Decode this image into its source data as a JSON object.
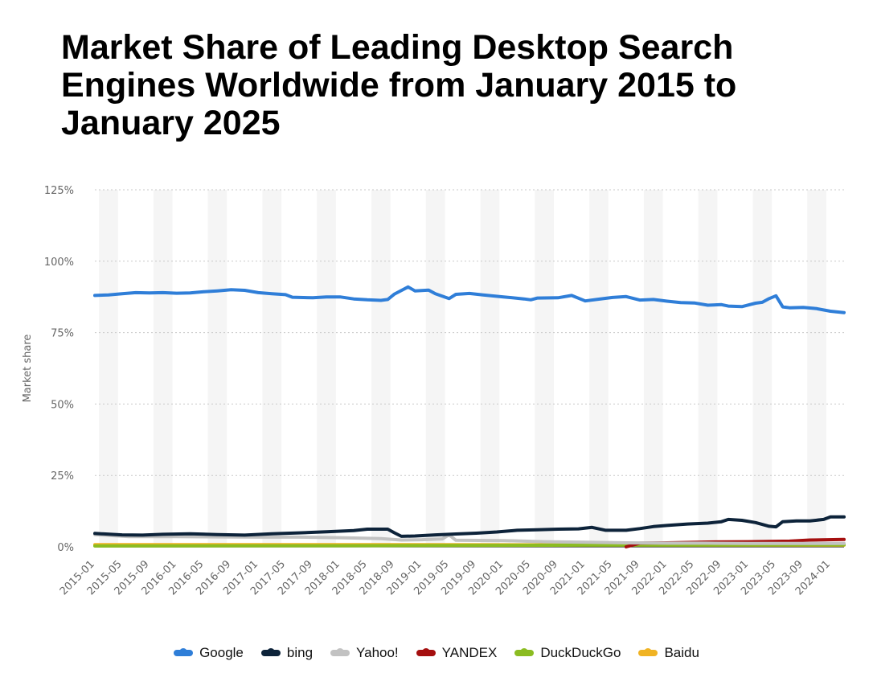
{
  "title": "Market Share of Leading Desktop Search Engines Worldwide from January 2015 to January 2025",
  "chart_data": {
    "type": "line",
    "title": "Market Share of Leading Desktop Search Engines Worldwide from January 2015 to January 2025",
    "xlabel": "",
    "ylabel": "Market share",
    "ylim": [
      0,
      125
    ],
    "yticks": [
      "0%",
      "25%",
      "50%",
      "75%",
      "100%",
      "125%"
    ],
    "x_start": "2015-01",
    "x_end": "2024-03",
    "xticks": [
      "2015-01",
      "2015-05",
      "2015-09",
      "2016-01",
      "2016-05",
      "2016-09",
      "2017-01",
      "2017-05",
      "2017-09",
      "2018-01",
      "2018-05",
      "2018-09",
      "2019-01",
      "2019-05",
      "2019-09",
      "2020-01",
      "2020-05",
      "2020-09",
      "2021-01",
      "2021-05",
      "2021-09",
      "2022-01",
      "2022-05",
      "2022-09",
      "2023-01",
      "2023-05",
      "2023-09",
      "2024-01"
    ],
    "grid": true,
    "legend_position": "bottom",
    "series": [
      {
        "name": "Google",
        "color": "#2f7ed8",
        "points": [
          [
            "2015-01",
            88.0
          ],
          [
            "2015-03",
            88.2
          ],
          [
            "2015-05",
            88.6
          ],
          [
            "2015-07",
            89.0
          ],
          [
            "2015-09",
            88.9
          ],
          [
            "2015-11",
            89.0
          ],
          [
            "2016-01",
            88.8
          ],
          [
            "2016-03",
            88.9
          ],
          [
            "2016-05",
            89.3
          ],
          [
            "2016-07",
            89.6
          ],
          [
            "2016-09",
            90.0
          ],
          [
            "2016-11",
            89.8
          ],
          [
            "2017-01",
            89.0
          ],
          [
            "2017-03",
            88.6
          ],
          [
            "2017-05",
            88.3
          ],
          [
            "2017-06",
            87.4
          ],
          [
            "2017-09",
            87.2
          ],
          [
            "2017-11",
            87.5
          ],
          [
            "2018-01",
            87.5
          ],
          [
            "2018-03",
            86.8
          ],
          [
            "2018-05",
            86.5
          ],
          [
            "2018-07",
            86.3
          ],
          [
            "2018-08",
            86.6
          ],
          [
            "2018-09",
            88.5
          ],
          [
            "2018-11",
            91.0
          ],
          [
            "2018-12",
            89.6
          ],
          [
            "2019-02",
            89.9
          ],
          [
            "2019-03",
            88.6
          ],
          [
            "2019-05",
            86.9
          ],
          [
            "2019-06",
            88.4
          ],
          [
            "2019-08",
            88.7
          ],
          [
            "2019-10",
            88.2
          ],
          [
            "2020-01",
            87.5
          ],
          [
            "2020-04",
            86.8
          ],
          [
            "2020-05",
            86.5
          ],
          [
            "2020-06",
            87.1
          ],
          [
            "2020-09",
            87.2
          ],
          [
            "2020-11",
            88.0
          ],
          [
            "2021-01",
            86.1
          ],
          [
            "2021-03",
            86.7
          ],
          [
            "2021-05",
            87.3
          ],
          [
            "2021-07",
            87.6
          ],
          [
            "2021-09",
            86.4
          ],
          [
            "2021-11",
            86.6
          ],
          [
            "2022-01",
            86.0
          ],
          [
            "2022-03",
            85.5
          ],
          [
            "2022-05",
            85.4
          ],
          [
            "2022-07",
            84.6
          ],
          [
            "2022-09",
            84.8
          ],
          [
            "2022-10",
            84.3
          ],
          [
            "2022-12",
            84.1
          ],
          [
            "2023-02",
            85.3
          ],
          [
            "2023-03",
            85.6
          ],
          [
            "2023-04",
            86.9
          ],
          [
            "2023-05",
            87.9
          ],
          [
            "2023-06",
            84.0
          ],
          [
            "2023-07",
            83.7
          ],
          [
            "2023-09",
            83.8
          ],
          [
            "2023-11",
            83.4
          ],
          [
            "2024-01",
            82.5
          ],
          [
            "2024-03",
            82.0
          ]
        ]
      },
      {
        "name": "bing",
        "color": "#0d233a",
        "points": [
          [
            "2015-01",
            4.7
          ],
          [
            "2015-05",
            4.2
          ],
          [
            "2015-08",
            4.1
          ],
          [
            "2015-11",
            4.4
          ],
          [
            "2016-03",
            4.6
          ],
          [
            "2016-07",
            4.3
          ],
          [
            "2016-11",
            4.1
          ],
          [
            "2017-03",
            4.6
          ],
          [
            "2017-07",
            4.9
          ],
          [
            "2017-11",
            5.3
          ],
          [
            "2018-03",
            5.7
          ],
          [
            "2018-05",
            6.2
          ],
          [
            "2018-08",
            6.2
          ],
          [
            "2018-09",
            4.9
          ],
          [
            "2018-10",
            3.7
          ],
          [
            "2018-12",
            3.8
          ],
          [
            "2019-03",
            4.2
          ],
          [
            "2019-06",
            4.5
          ],
          [
            "2019-09",
            4.8
          ],
          [
            "2019-12",
            5.2
          ],
          [
            "2020-03",
            5.8
          ],
          [
            "2020-06",
            6.0
          ],
          [
            "2020-09",
            6.2
          ],
          [
            "2020-12",
            6.3
          ],
          [
            "2021-02",
            6.8
          ],
          [
            "2021-04",
            5.8
          ],
          [
            "2021-07",
            5.8
          ],
          [
            "2021-09",
            6.4
          ],
          [
            "2021-11",
            7.1
          ],
          [
            "2022-01",
            7.5
          ],
          [
            "2022-04",
            8.0
          ],
          [
            "2022-07",
            8.3
          ],
          [
            "2022-09",
            8.8
          ],
          [
            "2022-10",
            9.6
          ],
          [
            "2022-12",
            9.3
          ],
          [
            "2023-02",
            8.5
          ],
          [
            "2023-04",
            7.2
          ],
          [
            "2023-05",
            7.0
          ],
          [
            "2023-06",
            8.8
          ],
          [
            "2023-08",
            9.1
          ],
          [
            "2023-10",
            9.1
          ],
          [
            "2023-12",
            9.6
          ],
          [
            "2024-01",
            10.5
          ],
          [
            "2024-03",
            10.5
          ]
        ]
      },
      {
        "name": "Yahoo!",
        "color": "#c2c2c2",
        "points": [
          [
            "2015-01",
            4.3
          ],
          [
            "2015-06",
            3.6
          ],
          [
            "2016-01",
            3.6
          ],
          [
            "2016-07",
            3.5
          ],
          [
            "2017-01",
            3.4
          ],
          [
            "2017-07",
            3.4
          ],
          [
            "2018-01",
            3.2
          ],
          [
            "2018-07",
            2.9
          ],
          [
            "2018-10",
            2.4
          ],
          [
            "2019-01",
            2.5
          ],
          [
            "2019-04",
            2.8
          ],
          [
            "2019-05",
            4.2
          ],
          [
            "2019-06",
            2.3
          ],
          [
            "2020-01",
            2.2
          ],
          [
            "2020-07",
            1.8
          ],
          [
            "2021-01",
            1.6
          ],
          [
            "2021-07",
            1.4
          ],
          [
            "2022-01",
            1.3
          ],
          [
            "2022-07",
            1.3
          ],
          [
            "2023-01",
            1.2
          ],
          [
            "2023-07",
            1.2
          ],
          [
            "2024-03",
            1.2
          ]
        ]
      },
      {
        "name": "YANDEX",
        "color": "#a50f0f",
        "points": [
          [
            "2021-07",
            0.0
          ],
          [
            "2021-09",
            1.3
          ],
          [
            "2022-01",
            1.4
          ],
          [
            "2022-07",
            1.7
          ],
          [
            "2023-01",
            1.8
          ],
          [
            "2023-07",
            2.0
          ],
          [
            "2023-10",
            2.4
          ],
          [
            "2024-03",
            2.6
          ]
        ]
      },
      {
        "name": "DuckDuckGo",
        "color": "#8bbc21",
        "points": [
          [
            "2015-01",
            0.3
          ],
          [
            "2018-01",
            0.4
          ],
          [
            "2021-01",
            0.6
          ],
          [
            "2024-03",
            0.7
          ]
        ]
      },
      {
        "name": "Baidu",
        "color": "#f0b323",
        "points": [
          [
            "2015-01",
            0.8
          ],
          [
            "2018-01",
            0.8
          ],
          [
            "2021-01",
            0.7
          ],
          [
            "2024-03",
            0.6
          ]
        ]
      }
    ]
  },
  "legend": [
    "Google",
    "bing",
    "Yahoo!",
    "YANDEX",
    "DuckDuckGo",
    "Baidu"
  ]
}
